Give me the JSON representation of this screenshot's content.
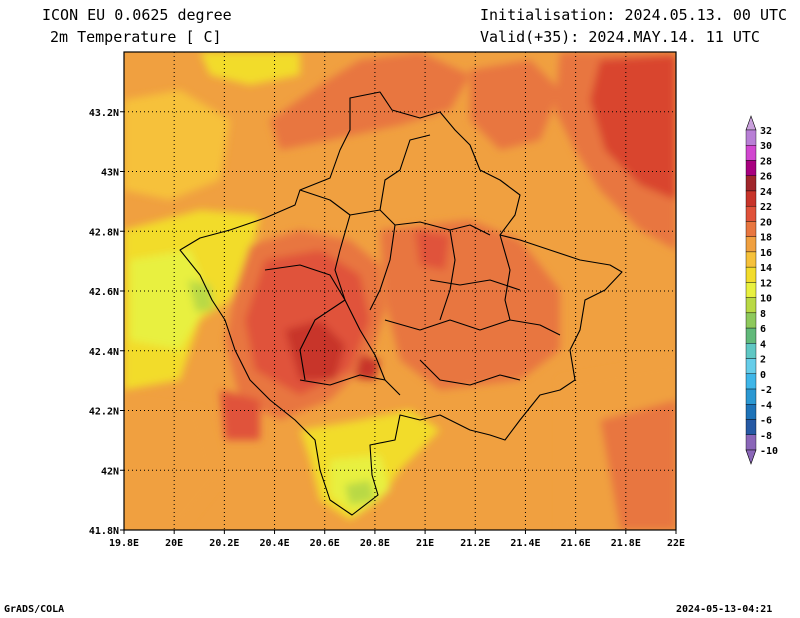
{
  "header": {
    "model": "ICON EU 0.0625 degree",
    "variable": "2m Temperature [ C]",
    "init": "Initialisation: 2024.05.13. 00 UTC",
    "valid": "Valid(+35): 2024.MAY.14. 11 UTC"
  },
  "footer": {
    "software": "GrADS/COLA",
    "timestamp": "2024-05-13-04:21"
  },
  "map": {
    "lon_range": [
      19.8,
      22.0
    ],
    "lat_range": [
      41.8,
      43.4
    ],
    "lon_ticks": [
      "19.8E",
      "20E",
      "20.2E",
      "20.4E",
      "20.6E",
      "20.8E",
      "21E",
      "21.2E",
      "21.4E",
      "21.6E",
      "21.8E",
      "22E"
    ],
    "lat_ticks": [
      "41.8N",
      "42N",
      "42.2N",
      "42.4N",
      "42.6N",
      "42.8N",
      "43N",
      "43.2N"
    ],
    "grid": "dotted"
  },
  "colorbar": {
    "labels": [
      "32",
      "30",
      "28",
      "26",
      "24",
      "22",
      "20",
      "18",
      "16",
      "14",
      "12",
      "10",
      "8",
      "6",
      "4",
      "2",
      "0",
      "-2",
      "-4",
      "-6",
      "-8",
      "-10"
    ],
    "colors": [
      "#c9a0dc",
      "#b87fd6",
      "#d147d0",
      "#a8007f",
      "#a0262b",
      "#c8342a",
      "#e0523a",
      "#e8763f",
      "#f0a040",
      "#f6c13a",
      "#f2dc2c",
      "#e8f040",
      "#b9d945",
      "#8ec95c",
      "#61b97a",
      "#5fc7c4",
      "#66cde9",
      "#3fb6e8",
      "#2b98d2",
      "#1e73b8",
      "#2659a4",
      "#8a66b8"
    ]
  }
}
